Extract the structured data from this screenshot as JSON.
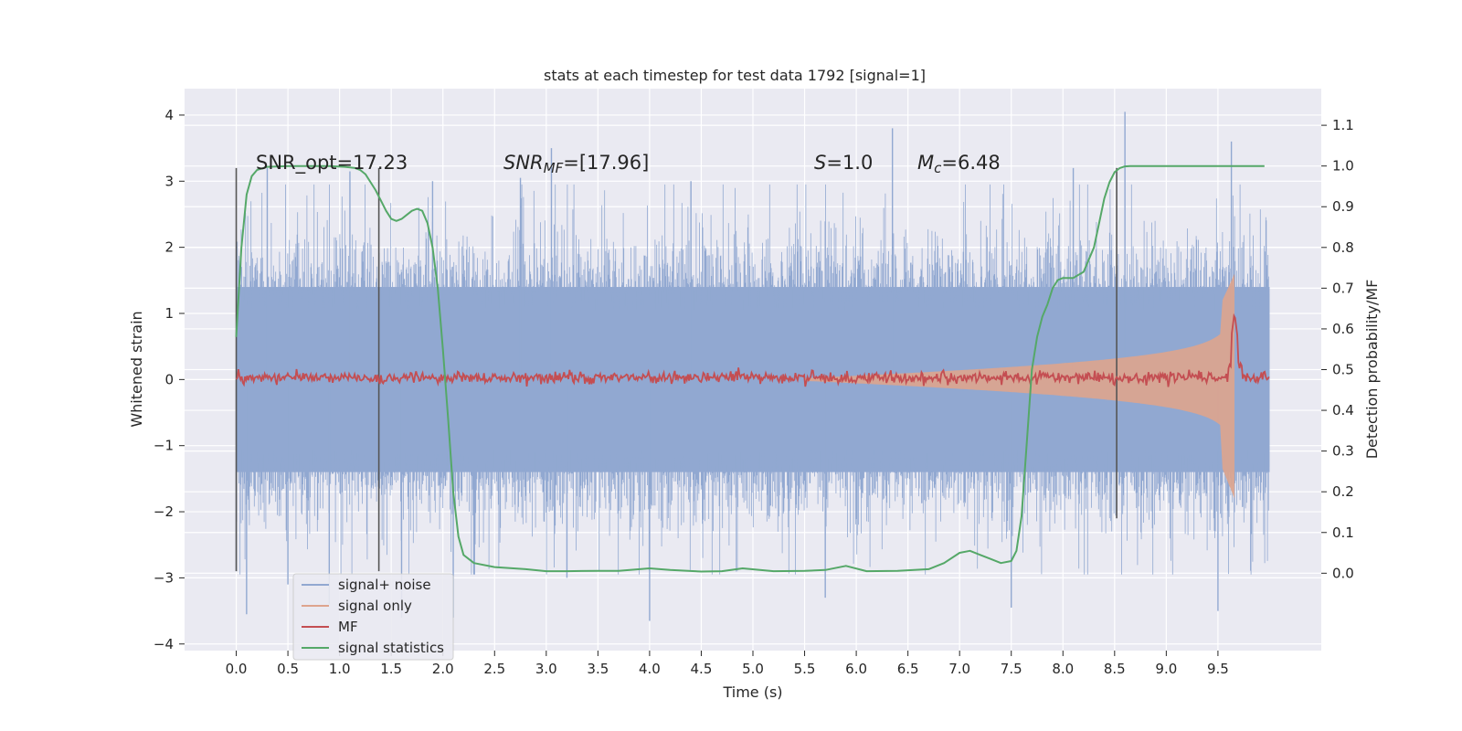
{
  "chart_data": {
    "type": "line",
    "title": "stats at each timestep for test data 1792 [signal=1]",
    "xlabel": "Time (s)",
    "ylabel_left": "Whitened strain",
    "ylabel_right": "Detection probability/MF",
    "xlim": [
      -0.5,
      10.5
    ],
    "ylim_left": [
      -4.1,
      4.4
    ],
    "ylim_right": [
      -0.19,
      1.19
    ],
    "x_ticks": [
      "0.0",
      "0.5",
      "1.0",
      "1.5",
      "2.0",
      "2.5",
      "3.0",
      "3.5",
      "4.0",
      "4.5",
      "5.0",
      "5.5",
      "6.0",
      "6.5",
      "7.0",
      "7.5",
      "8.0",
      "8.5",
      "9.0",
      "9.5"
    ],
    "y_ticks_left": [
      "−4",
      "−3",
      "−2",
      "−1",
      "0",
      "1",
      "2",
      "3",
      "4"
    ],
    "y_ticks_right": [
      "0.0",
      "0.1",
      "0.2",
      "0.3",
      "0.4",
      "0.5",
      "0.6",
      "0.7",
      "0.8",
      "0.9",
      "1.0",
      "1.1"
    ],
    "grid": true,
    "legend_position": "lower-left",
    "annotations": {
      "snr_opt": "SNR_opt=17.23",
      "snr_mf_base": "SNR",
      "snr_mf_sub": "MF",
      "snr_mf_value": "=[17.96]",
      "s_base": "S",
      "s_value": "=1.0",
      "mc_base": "M",
      "mc_sub": "c",
      "mc_value": "=6.48"
    },
    "vertical_markers": [
      {
        "x": 0.0,
        "y_range": [
          -2.9,
          3.2
        ]
      },
      {
        "x": 1.38,
        "y_range": [
          -2.9,
          3.2
        ]
      },
      {
        "x": 8.52,
        "y_range": [
          -2.1,
          3.2
        ]
      }
    ],
    "series": [
      {
        "name": "signal+ noise",
        "axis": "left",
        "color": "#91a8d1",
        "x_range": [
          0.0,
          10.0
        ],
        "envelope": {
          "typical": 1.4,
          "peaks_max": 4.05,
          "peaks_min": -3.65
        },
        "spikes": [
          {
            "x": 0.0,
            "y": -2.9
          },
          {
            "x": 0.1,
            "y": -3.55
          },
          {
            "x": 0.3,
            "y": 3.2
          },
          {
            "x": 0.5,
            "y": -3.1
          },
          {
            "x": 0.9,
            "y": -3.4
          },
          {
            "x": 1.1,
            "y": 3.15
          },
          {
            "x": 1.6,
            "y": -3.6
          },
          {
            "x": 1.9,
            "y": 3.0
          },
          {
            "x": 2.1,
            "y": -3.6
          },
          {
            "x": 2.75,
            "y": 3.05
          },
          {
            "x": 3.05,
            "y": 3.5
          },
          {
            "x": 3.2,
            "y": -3.0
          },
          {
            "x": 4.0,
            "y": -3.65
          },
          {
            "x": 4.4,
            "y": 3.0
          },
          {
            "x": 5.7,
            "y": -3.3
          },
          {
            "x": 6.35,
            "y": 3.8
          },
          {
            "x": 7.5,
            "y": -3.45
          },
          {
            "x": 8.1,
            "y": 3.2
          },
          {
            "x": 8.6,
            "y": 4.05
          },
          {
            "x": 9.5,
            "y": -3.5
          },
          {
            "x": 9.63,
            "y": 3.6
          }
        ]
      },
      {
        "name": "signal only",
        "axis": "left",
        "color": "#dea48d",
        "chirp": {
          "start": 5.5,
          "end": 9.66,
          "amp_start": 0.02,
          "amp_peak": 1.6,
          "amp_min_side": -1.8
        }
      },
      {
        "name": "MF",
        "axis": "right",
        "color": "#c44e52",
        "baseline": 0.48,
        "noise": 0.012,
        "peak": {
          "x": 9.66,
          "y": 0.64
        }
      },
      {
        "name": "signal statistics",
        "axis": "right",
        "color": "#55a868",
        "x": [
          0.0,
          0.05,
          0.1,
          0.15,
          0.2,
          0.3,
          0.5,
          0.7,
          0.9,
          1.05,
          1.15,
          1.2,
          1.25,
          1.3,
          1.35,
          1.4,
          1.45,
          1.5,
          1.55,
          1.6,
          1.65,
          1.7,
          1.75,
          1.8,
          1.85,
          1.9,
          1.95,
          2.0,
          2.05,
          2.1,
          2.15,
          2.2,
          2.3,
          2.5,
          2.8,
          3.0,
          3.2,
          3.5,
          3.7,
          4.0,
          4.2,
          4.5,
          4.7,
          4.9,
          5.2,
          5.5,
          5.7,
          5.9,
          6.1,
          6.4,
          6.7,
          6.85,
          7.0,
          7.1,
          7.2,
          7.3,
          7.4,
          7.5,
          7.55,
          7.6,
          7.65,
          7.7,
          7.75,
          7.8,
          7.85,
          7.9,
          7.95,
          8.0,
          8.1,
          8.2,
          8.3,
          8.35,
          8.4,
          8.45,
          8.5,
          8.55,
          8.6,
          8.65,
          8.7,
          8.8,
          9.0,
          9.3,
          9.6,
          9.95
        ],
        "y": [
          0.58,
          0.8,
          0.93,
          0.975,
          0.99,
          0.998,
          1.0,
          1.0,
          1.0,
          0.998,
          0.995,
          0.99,
          0.98,
          0.96,
          0.94,
          0.915,
          0.89,
          0.87,
          0.865,
          0.87,
          0.88,
          0.89,
          0.895,
          0.89,
          0.86,
          0.8,
          0.7,
          0.55,
          0.38,
          0.2,
          0.09,
          0.045,
          0.025,
          0.015,
          0.01,
          0.005,
          0.005,
          0.006,
          0.006,
          0.012,
          0.008,
          0.004,
          0.005,
          0.012,
          0.005,
          0.006,
          0.008,
          0.018,
          0.005,
          0.006,
          0.01,
          0.025,
          0.05,
          0.055,
          0.045,
          0.035,
          0.025,
          0.03,
          0.055,
          0.14,
          0.32,
          0.5,
          0.58,
          0.63,
          0.66,
          0.7,
          0.72,
          0.725,
          0.725,
          0.74,
          0.8,
          0.86,
          0.92,
          0.96,
          0.985,
          0.995,
          0.999,
          1.0,
          1.0,
          1.0,
          1.0,
          1.0,
          1.0,
          1.0
        ]
      }
    ]
  }
}
